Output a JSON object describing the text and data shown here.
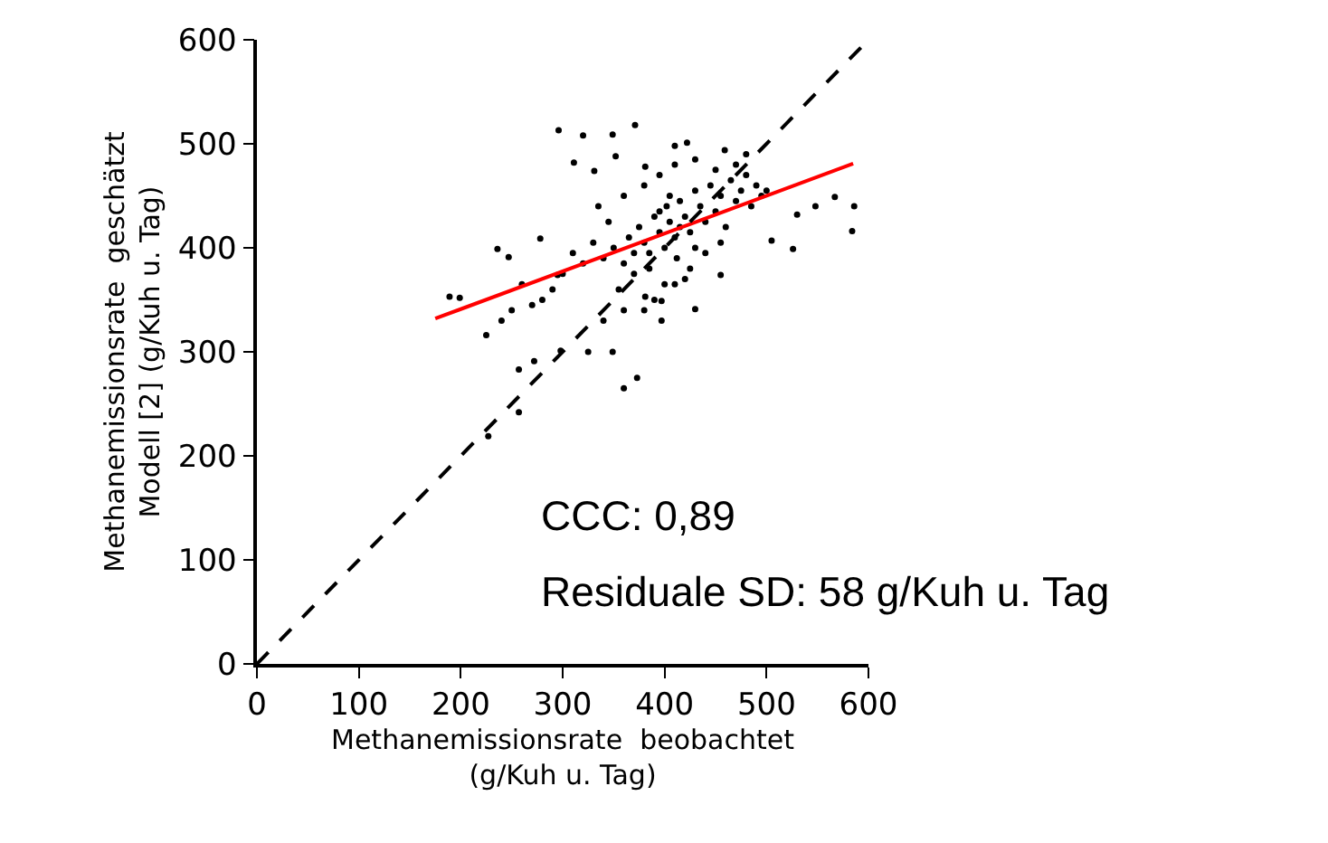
{
  "chart_data": {
    "type": "scatter",
    "xlabel": "Methanemissionsrate  beobachtet\n(g/Kuh u. Tag)",
    "ylabel": "Methanemissionsrate  geschätzt\nModell [2] (g/Kuh u. Tag)",
    "xlim": [
      0,
      600
    ],
    "ylim": [
      0,
      600
    ],
    "xticks": [
      0,
      100,
      200,
      300,
      400,
      500,
      600
    ],
    "yticks": [
      0,
      100,
      200,
      300,
      400,
      500,
      600
    ],
    "grid": false,
    "marker": "circle",
    "annotations": [
      "CCC: 0,89",
      "Residuale SD: 58 g/Kuh u. Tag"
    ],
    "series": [
      {
        "color": "#000000",
        "x": [
          296,
          320,
          349,
          371,
          189,
          199,
          236,
          247,
          225,
          227,
          257,
          257,
          272,
          298,
          325,
          349,
          360,
          373,
          278,
          295,
          311,
          331,
          352,
          381,
          410,
          422,
          459,
          480,
          530,
          548,
          567,
          586,
          584,
          526,
          505,
          397,
          397,
          381,
          455,
          430,
          350,
          360,
          365,
          370,
          375,
          380,
          385,
          390,
          395,
          400,
          402,
          405,
          410,
          412,
          415,
          420,
          425,
          430,
          435,
          440,
          445,
          450,
          455,
          460,
          465,
          470,
          475,
          480,
          485,
          490,
          495,
          500,
          420,
          400,
          390,
          380,
          370,
          355,
          340,
          330,
          320,
          310,
          300,
          290,
          280,
          270,
          260,
          250,
          240,
          345,
          335,
          360,
          380,
          395,
          410,
          430,
          450,
          470,
          440,
          455,
          425,
          410,
          385,
          395,
          405,
          415,
          430,
          360,
          340
        ],
        "values": [
          513,
          508,
          509,
          518,
          353,
          352,
          399,
          391,
          316,
          219,
          242,
          283,
          291,
          301,
          300,
          300,
          265,
          275,
          409,
          374,
          482,
          474,
          488,
          478,
          498,
          501,
          494,
          490,
          432,
          440,
          449,
          440,
          416,
          399,
          407,
          330,
          349,
          353,
          374,
          341,
          400,
          385,
          410,
          395,
          420,
          405,
          380,
          430,
          415,
          400,
          440,
          425,
          410,
          390,
          445,
          430,
          415,
          455,
          440,
          425,
          460,
          435,
          450,
          420,
          465,
          445,
          455,
          470,
          440,
          460,
          450,
          455,
          370,
          365,
          350,
          340,
          375,
          360,
          390,
          405,
          385,
          395,
          375,
          360,
          350,
          345,
          365,
          340,
          330,
          425,
          440,
          450,
          460,
          470,
          480,
          485,
          475,
          480,
          395,
          405,
          380,
          365,
          395,
          435,
          450,
          420,
          400,
          340,
          330
        ]
      },
      {
        "type": "line",
        "color": "#ff0000",
        "line_style": "solid",
        "marker": "none",
        "x": [
          175,
          585
        ],
        "values": [
          332,
          481
        ]
      },
      {
        "type": "line",
        "color": "#000000",
        "line_style": "dashed",
        "marker": "none",
        "x": [
          0,
          600
        ],
        "values": [
          0,
          600
        ]
      }
    ]
  }
}
